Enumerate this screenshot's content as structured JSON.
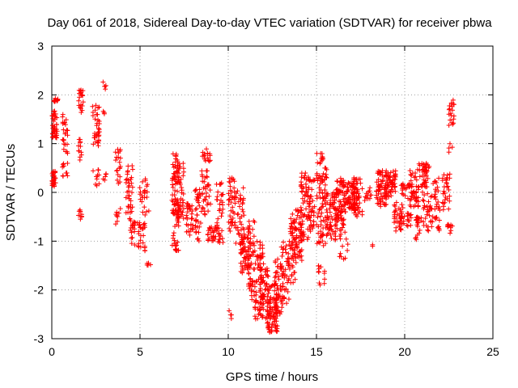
{
  "chart_data": {
    "type": "scatter",
    "title": "Day 061 of 2018, Sidereal Day-to-day VTEC variation (SDTVAR) for receiver pbwa",
    "xlabel": "GPS time / hours",
    "ylabel": "SDTVAR / TECUs",
    "xlim": [
      0,
      25
    ],
    "ylim": [
      -3,
      3
    ],
    "xticks": [
      "0",
      "5",
      "10",
      "15",
      "20",
      "25"
    ],
    "yticks": [
      "-3",
      "-2",
      "-1",
      "0",
      "1",
      "2",
      "3"
    ],
    "grid": true,
    "marker": "+",
    "color": "#ff0000",
    "clusters": [
      {
        "x": [
          0.0,
          0.3
        ],
        "y": [
          1.1,
          1.7
        ],
        "n": 40
      },
      {
        "x": [
          0.0,
          0.3
        ],
        "y": [
          0.1,
          0.45
        ],
        "n": 25
      },
      {
        "x": [
          0.05,
          0.35
        ],
        "y": [
          1.85,
          1.95
        ],
        "n": 10
      },
      {
        "x": [
          0.6,
          0.9
        ],
        "y": [
          0.8,
          1.6
        ],
        "n": 25
      },
      {
        "x": [
          0.6,
          0.9
        ],
        "y": [
          0.3,
          0.6
        ],
        "n": 10
      },
      {
        "x": [
          1.5,
          1.8
        ],
        "y": [
          1.6,
          2.1
        ],
        "n": 20
      },
      {
        "x": [
          1.5,
          1.7
        ],
        "y": [
          0.6,
          1.1
        ],
        "n": 12
      },
      {
        "x": [
          1.5,
          1.7
        ],
        "y": [
          -0.55,
          -0.35
        ],
        "n": 8
      },
      {
        "x": [
          2.3,
          2.7
        ],
        "y": [
          0.9,
          1.9
        ],
        "n": 35
      },
      {
        "x": [
          2.3,
          2.7
        ],
        "y": [
          0.1,
          0.5
        ],
        "n": 10
      },
      {
        "x": [
          2.9,
          3.1
        ],
        "y": [
          2.1,
          2.3
        ],
        "n": 5
      },
      {
        "x": [
          2.9,
          3.1
        ],
        "y": [
          0.2,
          0.4
        ],
        "n": 5
      },
      {
        "x": [
          2.9,
          3.1
        ],
        "y": [
          1.6,
          1.7
        ],
        "n": 3
      },
      {
        "x": [
          3.6,
          3.9
        ],
        "y": [
          0.1,
          0.9
        ],
        "n": 20
      },
      {
        "x": [
          3.6,
          3.9
        ],
        "y": [
          -0.7,
          -0.3
        ],
        "n": 8
      },
      {
        "x": [
          4.2,
          4.6
        ],
        "y": [
          -0.8,
          0.6
        ],
        "n": 45
      },
      {
        "x": [
          4.5,
          5.3
        ],
        "y": [
          -1.2,
          -0.6
        ],
        "n": 40
      },
      {
        "x": [
          4.9,
          5.5
        ],
        "y": [
          -0.5,
          0.3
        ],
        "n": 25
      },
      {
        "x": [
          5.4,
          5.6
        ],
        "y": [
          -1.5,
          -1.4
        ],
        "n": 5
      },
      {
        "x": [
          6.8,
          7.2
        ],
        "y": [
          -1.2,
          0.8
        ],
        "n": 80
      },
      {
        "x": [
          7.1,
          7.5
        ],
        "y": [
          -0.6,
          0.6
        ],
        "n": 50
      },
      {
        "x": [
          7.6,
          8.0
        ],
        "y": [
          -0.9,
          -0.2
        ],
        "n": 30
      },
      {
        "x": [
          8.1,
          8.5
        ],
        "y": [
          -1.0,
          0.1
        ],
        "n": 35
      },
      {
        "x": [
          8.5,
          9.0
        ],
        "y": [
          -0.5,
          0.9
        ],
        "n": 50
      },
      {
        "x": [
          8.8,
          9.3
        ],
        "y": [
          -1.0,
          -0.7
        ],
        "n": 25
      },
      {
        "x": [
          9.3,
          9.7
        ],
        "y": [
          -1.1,
          0.2
        ],
        "n": 40
      },
      {
        "x": [
          10.0,
          10.4
        ],
        "y": [
          -0.8,
          0.3
        ],
        "n": 40
      },
      {
        "x": [
          10.0,
          10.2
        ],
        "y": [
          -2.6,
          -2.4
        ],
        "n": 4
      },
      {
        "x": [
          10.4,
          10.9
        ],
        "y": [
          -1.1,
          0.1
        ],
        "n": 40
      },
      {
        "x": [
          10.7,
          11.2
        ],
        "y": [
          -1.7,
          -0.9
        ],
        "n": 50
      },
      {
        "x": [
          11.1,
          11.5
        ],
        "y": [
          -2.2,
          -0.5
        ],
        "n": 60
      },
      {
        "x": [
          11.5,
          12.0
        ],
        "y": [
          -2.6,
          -1.0
        ],
        "n": 70
      },
      {
        "x": [
          11.8,
          12.3
        ],
        "y": [
          -2.6,
          -1.5
        ],
        "n": 50
      },
      {
        "x": [
          12.2,
          12.8
        ],
        "y": [
          -2.9,
          -1.9
        ],
        "n": 90
      },
      {
        "x": [
          12.6,
          13.1
        ],
        "y": [
          -2.5,
          -1.3
        ],
        "n": 50
      },
      {
        "x": [
          13.0,
          13.5
        ],
        "y": [
          -2.3,
          -1.0
        ],
        "n": 40
      },
      {
        "x": [
          13.4,
          13.9
        ],
        "y": [
          -1.9,
          -0.5
        ],
        "n": 50
      },
      {
        "x": [
          13.6,
          14.2
        ],
        "y": [
          -1.4,
          -0.3
        ],
        "n": 55
      },
      {
        "x": [
          14.1,
          14.6
        ],
        "y": [
          -1.0,
          0.4
        ],
        "n": 60
      },
      {
        "x": [
          14.5,
          14.9
        ],
        "y": [
          -0.8,
          0.3
        ],
        "n": 40
      },
      {
        "x": [
          15.0,
          15.6
        ],
        "y": [
          -1.1,
          0.8
        ],
        "n": 90
      },
      {
        "x": [
          15.1,
          15.5
        ],
        "y": [
          -1.9,
          -1.5
        ],
        "n": 12
      },
      {
        "x": [
          15.6,
          16.2
        ],
        "y": [
          -1.0,
          0.0
        ],
        "n": 60
      },
      {
        "x": [
          16.1,
          16.6
        ],
        "y": [
          -0.6,
          0.3
        ],
        "n": 70
      },
      {
        "x": [
          16.6,
          17.2
        ],
        "y": [
          -0.4,
          0.2
        ],
        "n": 70
      },
      {
        "x": [
          17.1,
          17.6
        ],
        "y": [
          -0.5,
          0.3
        ],
        "n": 50
      },
      {
        "x": [
          16.3,
          16.8
        ],
        "y": [
          -1.4,
          -0.6
        ],
        "n": 20
      },
      {
        "x": [
          17.7,
          18.1
        ],
        "y": [
          -0.2,
          0.1
        ],
        "n": 12
      },
      {
        "x": [
          18.0,
          18.3
        ],
        "y": [
          -1.15,
          -1.05
        ],
        "n": 2
      },
      {
        "x": [
          18.4,
          19.0
        ],
        "y": [
          -0.3,
          0.45
        ],
        "n": 70
      },
      {
        "x": [
          18.9,
          19.5
        ],
        "y": [
          -0.1,
          0.45
        ],
        "n": 50
      },
      {
        "x": [
          19.4,
          19.8
        ],
        "y": [
          -0.8,
          -0.2
        ],
        "n": 30
      },
      {
        "x": [
          19.8,
          20.4
        ],
        "y": [
          -0.7,
          0.2
        ],
        "n": 50
      },
      {
        "x": [
          20.3,
          20.8
        ],
        "y": [
          -0.3,
          0.5
        ],
        "n": 40
      },
      {
        "x": [
          20.6,
          21.0
        ],
        "y": [
          -1.0,
          -0.5
        ],
        "n": 20
      },
      {
        "x": [
          20.8,
          21.3
        ],
        "y": [
          0.1,
          0.6
        ],
        "n": 30
      },
      {
        "x": [
          21.0,
          21.6
        ],
        "y": [
          -0.8,
          0.6
        ],
        "n": 50
      },
      {
        "x": [
          21.6,
          22.0
        ],
        "y": [
          -0.8,
          0.3
        ],
        "n": 30
      },
      {
        "x": [
          22.1,
          22.6
        ],
        "y": [
          -0.4,
          0.4
        ],
        "n": 30
      },
      {
        "x": [
          22.4,
          22.7
        ],
        "y": [
          -0.95,
          -0.6
        ],
        "n": 10
      },
      {
        "x": [
          22.5,
          22.8
        ],
        "y": [
          1.3,
          2.0
        ],
        "n": 20
      },
      {
        "x": [
          22.5,
          22.7
        ],
        "y": [
          0.8,
          1.0
        ],
        "n": 4
      }
    ]
  }
}
